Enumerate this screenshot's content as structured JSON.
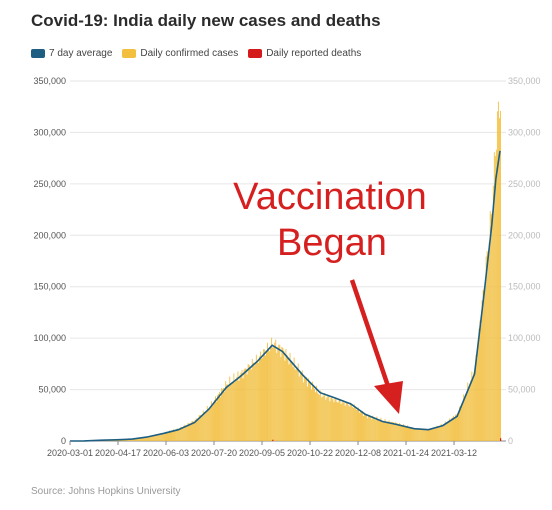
{
  "title": "Covid-19: India daily new cases and deaths",
  "legend": [
    {
      "label": "7 day average",
      "color": "#1d5e82"
    },
    {
      "label": "Daily confirmed cases",
      "color": "#f2bf3f"
    },
    {
      "label": "Daily reported deaths",
      "color": "#d41a1a"
    }
  ],
  "source": "Source: Johns Hopkins University",
  "annotation": {
    "line1": "Vaccination",
    "line2": "Began",
    "color": "#d61f1f"
  },
  "chart_data": {
    "type": "bar",
    "title": "Covid-19: India daily new cases and deaths",
    "xlabel": "",
    "ylabel": "",
    "ylim": [
      0,
      350000
    ],
    "yticks": [
      0,
      50000,
      100000,
      150000,
      200000,
      250000,
      300000,
      350000
    ],
    "ytick_labels": [
      "0",
      "50,000",
      "100,000",
      "150,000",
      "200,000",
      "250,000",
      "300,000",
      "350,000"
    ],
    "xtick_labels": [
      "2020-03-01",
      "2020-04-17",
      "2020-06-03",
      "2020-07-20",
      "2020-09-05",
      "2020-10-22",
      "2020-12-08",
      "2021-01-24",
      "2021-03-12"
    ],
    "x_start": "2020-03-01",
    "x_end": "2021-04-26",
    "grid": "horizontal",
    "legend_position": "top-left",
    "series": [
      {
        "name": "Daily confirmed cases",
        "type": "bar",
        "color": "#f2bf3f",
        "x": [
          "2020-03-01",
          "2020-03-15",
          "2020-04-01",
          "2020-04-15",
          "2020-05-01",
          "2020-05-15",
          "2020-06-01",
          "2020-06-15",
          "2020-07-01",
          "2020-07-15",
          "2020-08-01",
          "2020-08-15",
          "2020-09-01",
          "2020-09-15",
          "2020-09-25",
          "2020-10-01",
          "2020-10-15",
          "2020-11-01",
          "2020-11-15",
          "2020-12-01",
          "2020-12-15",
          "2021-01-01",
          "2021-01-15",
          "2021-02-01",
          "2021-02-15",
          "2021-03-01",
          "2021-03-15",
          "2021-04-01",
          "2021-04-10",
          "2021-04-18",
          "2021-04-22",
          "2021-04-26"
        ],
        "values": [
          0,
          50,
          1000,
          1500,
          2000,
          4000,
          8000,
          12000,
          20000,
          33000,
          55000,
          65000,
          80000,
          95000,
          88000,
          80000,
          63000,
          45000,
          40000,
          35000,
          25000,
          20000,
          17000,
          12000,
          11000,
          16000,
          26000,
          70000,
          150000,
          230000,
          300000,
          335000
        ]
      },
      {
        "name": "7 day average",
        "type": "line",
        "color": "#1d5e82",
        "x": [
          "2020-03-01",
          "2020-03-15",
          "2020-04-01",
          "2020-04-15",
          "2020-05-01",
          "2020-05-15",
          "2020-06-01",
          "2020-06-15",
          "2020-07-01",
          "2020-07-15",
          "2020-08-01",
          "2020-08-15",
          "2020-09-01",
          "2020-09-15",
          "2020-09-25",
          "2020-10-01",
          "2020-10-15",
          "2020-11-01",
          "2020-11-15",
          "2020-12-01",
          "2020-12-15",
          "2021-01-01",
          "2021-01-15",
          "2021-02-01",
          "2021-02-15",
          "2021-03-01",
          "2021-03-15",
          "2021-04-01",
          "2021-04-10",
          "2021-04-18",
          "2021-04-22",
          "2021-04-26"
        ],
        "values": [
          0,
          50,
          800,
          1200,
          1800,
          3800,
          7500,
          11000,
          18000,
          31000,
          52000,
          63000,
          78000,
          93000,
          87000,
          80000,
          64000,
          47000,
          42000,
          36000,
          26000,
          19000,
          16000,
          12000,
          11000,
          15000,
          24000,
          65000,
          140000,
          210000,
          255000,
          282000
        ]
      },
      {
        "name": "Daily reported deaths",
        "type": "bar",
        "color": "#d41a1a",
        "x": [
          "2020-09-15",
          "2021-04-26"
        ],
        "values": [
          1200,
          2700
        ]
      }
    ]
  }
}
